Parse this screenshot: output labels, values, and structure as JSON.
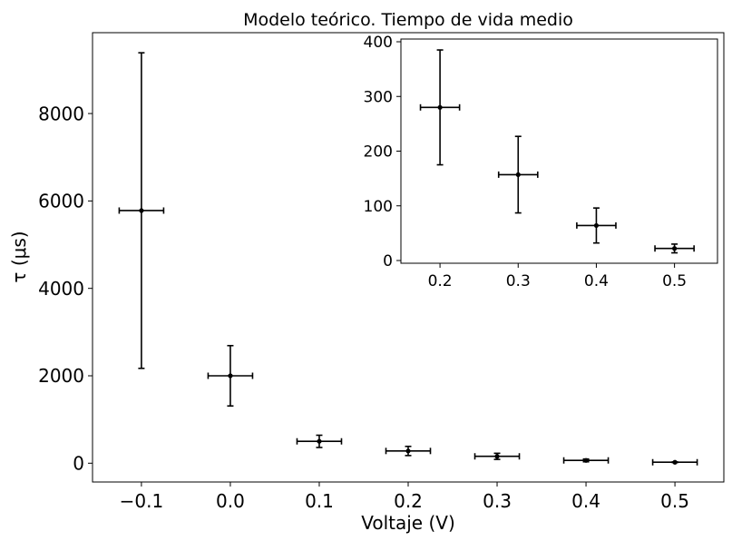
{
  "chart_data": [
    {
      "type": "scatter",
      "title": "Modelo teórico. Tiempo de vida medio",
      "xlabel": "Voltaje (V)",
      "ylabel": "τ (μs)",
      "xlim": [
        -0.155,
        0.555
      ],
      "ylim": [
        -430,
        9850
      ],
      "xticks": [
        -0.1,
        0.0,
        0.1,
        0.2,
        0.3,
        0.4,
        0.5
      ],
      "xtick_labels": [
        "−0.1",
        "0.0",
        "0.1",
        "0.2",
        "0.3",
        "0.4",
        "0.5"
      ],
      "yticks": [
        0,
        2000,
        4000,
        6000,
        8000
      ],
      "ytick_labels": [
        "0",
        "2000",
        "4000",
        "6000",
        "8000"
      ],
      "grid": false,
      "marker_color": "#000000",
      "points": [
        {
          "x": -0.1,
          "y": 5780,
          "xerr": 0.025,
          "yerr": 3610
        },
        {
          "x": 0.0,
          "y": 2000,
          "xerr": 0.025,
          "yerr": 690
        },
        {
          "x": 0.1,
          "y": 500,
          "xerr": 0.025,
          "yerr": 140
        },
        {
          "x": 0.2,
          "y": 280,
          "xerr": 0.025,
          "yerr": 105
        },
        {
          "x": 0.3,
          "y": 157,
          "xerr": 0.025,
          "yerr": 70
        },
        {
          "x": 0.4,
          "y": 64,
          "xerr": 0.025,
          "yerr": 32
        },
        {
          "x": 0.5,
          "y": 22,
          "xerr": 0.025,
          "yerr": 8
        }
      ]
    },
    {
      "type": "scatter",
      "title": "",
      "xlabel": "",
      "ylabel": "",
      "xlim": [
        0.15,
        0.555
      ],
      "ylim": [
        -5,
        405
      ],
      "xticks": [
        0.2,
        0.3,
        0.4,
        0.5
      ],
      "xtick_labels": [
        "0.2",
        "0.3",
        "0.4",
        "0.5"
      ],
      "yticks": [
        0,
        100,
        200,
        300,
        400
      ],
      "ytick_labels": [
        "0",
        "100",
        "200",
        "300",
        "400"
      ],
      "grid": false,
      "marker_color": "#000000",
      "points": [
        {
          "x": 0.2,
          "y": 280,
          "xerr": 0.025,
          "yerr": 105
        },
        {
          "x": 0.3,
          "y": 157,
          "xerr": 0.025,
          "yerr": 70
        },
        {
          "x": 0.4,
          "y": 64,
          "xerr": 0.025,
          "yerr": 32
        },
        {
          "x": 0.5,
          "y": 22,
          "xerr": 0.025,
          "yerr": 8
        }
      ]
    }
  ]
}
